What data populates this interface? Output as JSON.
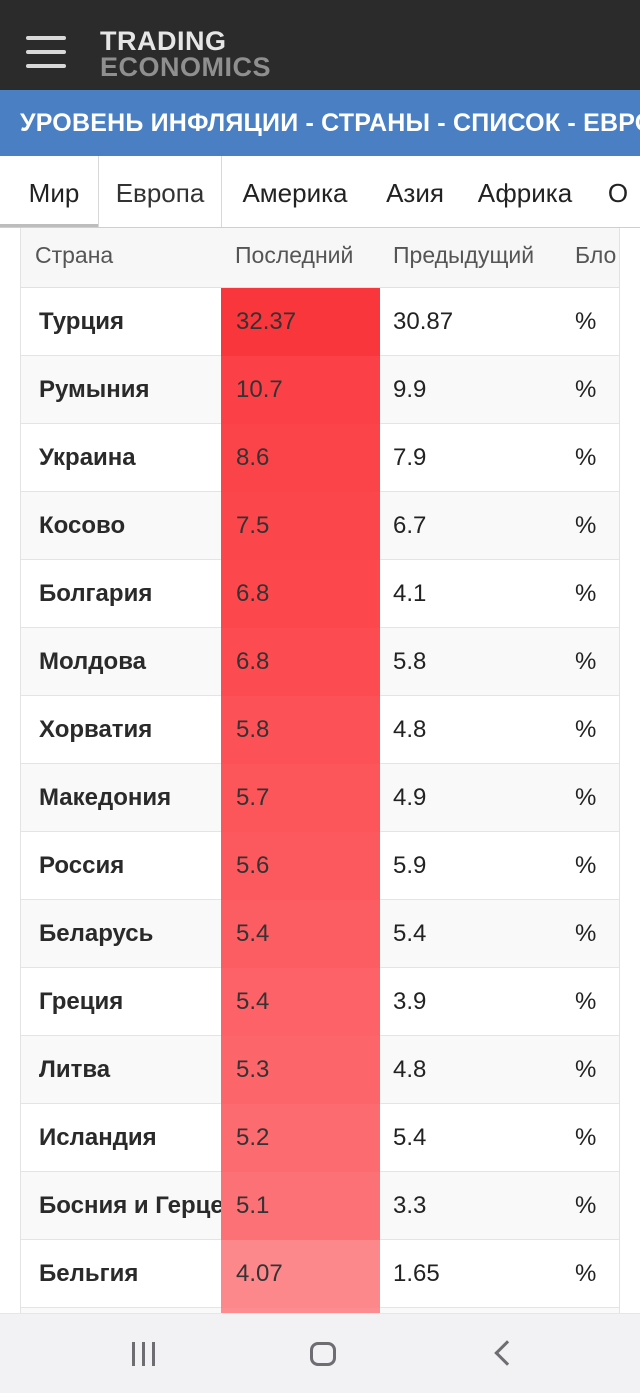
{
  "header": {
    "logo_line1": "TRADING",
    "logo_line2": "ECONOMICS",
    "menu_icon": "hamburger-menu-icon"
  },
  "banner": {
    "title": "УРОВЕНЬ ИНФЛЯЦИИ - СТРАНЫ - СПИСОК - ЕВРОПА"
  },
  "tabs": [
    {
      "label": "Мир",
      "active": false
    },
    {
      "label": "Европа",
      "active": true
    },
    {
      "label": "Америка",
      "active": false
    },
    {
      "label": "Азия",
      "active": false
    },
    {
      "label": "Африка",
      "active": false
    },
    {
      "label": "О",
      "active": false
    }
  ],
  "table": {
    "columns": {
      "country": "Страна",
      "last": "Последний",
      "previous": "Предыдущий",
      "unit": "Бло"
    },
    "rows": [
      {
        "country": "Турция",
        "last": "32.37",
        "previous": "30.87",
        "unit": "%",
        "heat": "#f9363c"
      },
      {
        "country": "Румыния",
        "last": "10.7",
        "previous": "9.9",
        "unit": "%",
        "heat": "#fb4147"
      },
      {
        "country": "Украина",
        "last": "8.6",
        "previous": "7.9",
        "unit": "%",
        "heat": "#fb4449"
      },
      {
        "country": "Косово",
        "last": "7.5",
        "previous": "6.7",
        "unit": "%",
        "heat": "#fb464b"
      },
      {
        "country": "Болгария",
        "last": "6.8",
        "previous": "4.1",
        "unit": "%",
        "heat": "#fc484d"
      },
      {
        "country": "Молдова",
        "last": "6.8",
        "previous": "5.8",
        "unit": "%",
        "heat": "#fc4c51"
      },
      {
        "country": "Хорватия",
        "last": "5.8",
        "previous": "4.8",
        "unit": "%",
        "heat": "#fc5257"
      },
      {
        "country": "Македония",
        "last": "5.7",
        "previous": "4.9",
        "unit": "%",
        "heat": "#fc555a"
      },
      {
        "country": "Россия",
        "last": "5.6",
        "previous": "5.9",
        "unit": "%",
        "heat": "#fc595e"
      },
      {
        "country": "Беларусь",
        "last": "5.4",
        "previous": "5.4",
        "unit": "%",
        "heat": "#fc5d62"
      },
      {
        "country": "Греция",
        "last": "5.4",
        "previous": "3.9",
        "unit": "%",
        "heat": "#fc6267"
      },
      {
        "country": "Литва",
        "last": "5.3",
        "previous": "4.8",
        "unit": "%",
        "heat": "#fc666b"
      },
      {
        "country": "Исландия",
        "last": "5.2",
        "previous": "5.4",
        "unit": "%",
        "heat": "#fc6b70"
      },
      {
        "country": "Босния и Герцеговина",
        "last": "5.1",
        "previous": "3.3",
        "unit": "%",
        "heat": "#fc7176"
      },
      {
        "country": "Бельгия",
        "last": "4.07",
        "previous": "1.65",
        "unit": "%",
        "heat": "#fc888c"
      },
      {
        "country": "",
        "last": "",
        "previous": "",
        "unit": "",
        "heat": "#fc8c90"
      }
    ]
  },
  "navbar": {
    "recents_icon": "recent-apps-icon",
    "home_icon": "home-icon",
    "back_icon": "back-icon"
  }
}
